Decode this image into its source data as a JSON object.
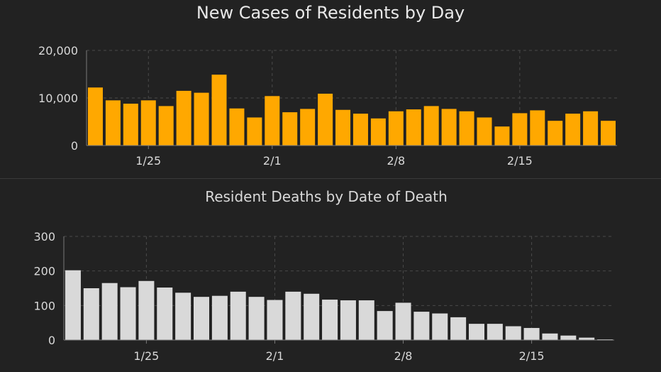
{
  "chart_data": [
    {
      "type": "bar",
      "title": "New Cases of Residents by Day",
      "xlabel": "",
      "ylabel": "",
      "ylim": [
        0,
        20000
      ],
      "yticks": [
        0,
        10000,
        20000
      ],
      "ytick_labels": [
        "0",
        "10,000",
        "20,000"
      ],
      "x_tick_labels": [
        {
          "label": "1/25",
          "index": 3
        },
        {
          "label": "2/1",
          "index": 10
        },
        {
          "label": "2/8",
          "index": 17
        },
        {
          "label": "2/15",
          "index": 24
        }
      ],
      "categories": [
        "1/22",
        "1/23",
        "1/24",
        "1/25",
        "1/26",
        "1/27",
        "1/28",
        "1/29",
        "1/30",
        "1/31",
        "2/1",
        "2/2",
        "2/3",
        "2/4",
        "2/5",
        "2/6",
        "2/7",
        "2/8",
        "2/9",
        "2/10",
        "2/11",
        "2/12",
        "2/13",
        "2/14",
        "2/15",
        "2/16",
        "2/17",
        "2/18",
        "2/19",
        "2/20"
      ],
      "values": [
        12200,
        9500,
        8800,
        9500,
        8300,
        11500,
        11100,
        14900,
        7800,
        5900,
        10400,
        7000,
        7700,
        10900,
        7500,
        6700,
        5700,
        7200,
        7600,
        8300,
        7700,
        7200,
        5900,
        4000,
        6800,
        7400,
        5200,
        6700,
        7200,
        5200
      ],
      "grid": true,
      "colors": {
        "bar": "#FFA800",
        "grid": "#4a4a4a",
        "axis": "#7a7a7a",
        "text": "#d9d9d9",
        "title": "#e8e8e8"
      }
    },
    {
      "type": "bar",
      "title": "Resident Deaths by Date of Death",
      "xlabel": "",
      "ylabel": "",
      "ylim": [
        0,
        300
      ],
      "yticks": [
        0,
        100,
        200,
        300
      ],
      "ytick_labels": [
        "0",
        "100",
        "200",
        "300"
      ],
      "x_tick_labels": [
        {
          "label": "1/25",
          "index": 4
        },
        {
          "label": "2/1",
          "index": 11
        },
        {
          "label": "2/8",
          "index": 18
        },
        {
          "label": "2/15",
          "index": 25
        }
      ],
      "categories": [
        "1/21",
        "1/22",
        "1/23",
        "1/24",
        "1/25",
        "1/26",
        "1/27",
        "1/28",
        "1/29",
        "1/30",
        "1/31",
        "2/1",
        "2/2",
        "2/3",
        "2/4",
        "2/5",
        "2/6",
        "2/7",
        "2/8",
        "2/9",
        "2/10",
        "2/11",
        "2/12",
        "2/13",
        "2/14",
        "2/15",
        "2/16",
        "2/17",
        "2/18",
        "2/19"
      ],
      "values": [
        202,
        150,
        165,
        153,
        171,
        152,
        137,
        125,
        128,
        140,
        125,
        116,
        140,
        134,
        117,
        115,
        115,
        84,
        108,
        82,
        77,
        66,
        47,
        47,
        40,
        35,
        19,
        13,
        7,
        2
      ],
      "grid": true,
      "colors": {
        "bar": "#D9D9D9",
        "grid": "#4a4a4a",
        "axis": "#7a7a7a",
        "text": "#d9d9d9",
        "title": "#d9d9d9"
      }
    }
  ]
}
